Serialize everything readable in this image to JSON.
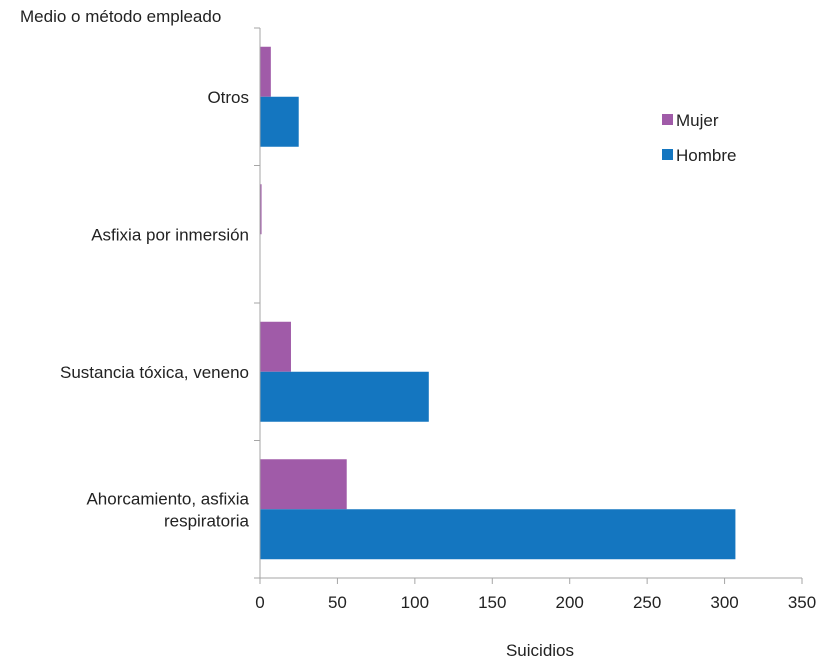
{
  "chart_data": {
    "type": "bar",
    "orientation": "horizontal",
    "ylabel": "Medio o método empleado",
    "xlabel": "Suicidios",
    "categories": [
      [
        "Otros"
      ],
      [
        "Asfixia por inmersión"
      ],
      [
        "Sustancia tóxica, veneno"
      ],
      [
        "Ahorcamiento, asfixia",
        "respiratoria"
      ]
    ],
    "series": [
      {
        "name": "Mujer",
        "color": "#a05ba8",
        "values": [
          7,
          1,
          20,
          56
        ]
      },
      {
        "name": "Hombre",
        "color": "#1476c0",
        "values": [
          25,
          0,
          109,
          307
        ]
      }
    ],
    "xlim": [
      0,
      350
    ],
    "xticks": [
      0,
      50,
      100,
      150,
      200,
      250,
      300,
      350
    ],
    "grid": false,
    "legend_position": "top-right"
  }
}
